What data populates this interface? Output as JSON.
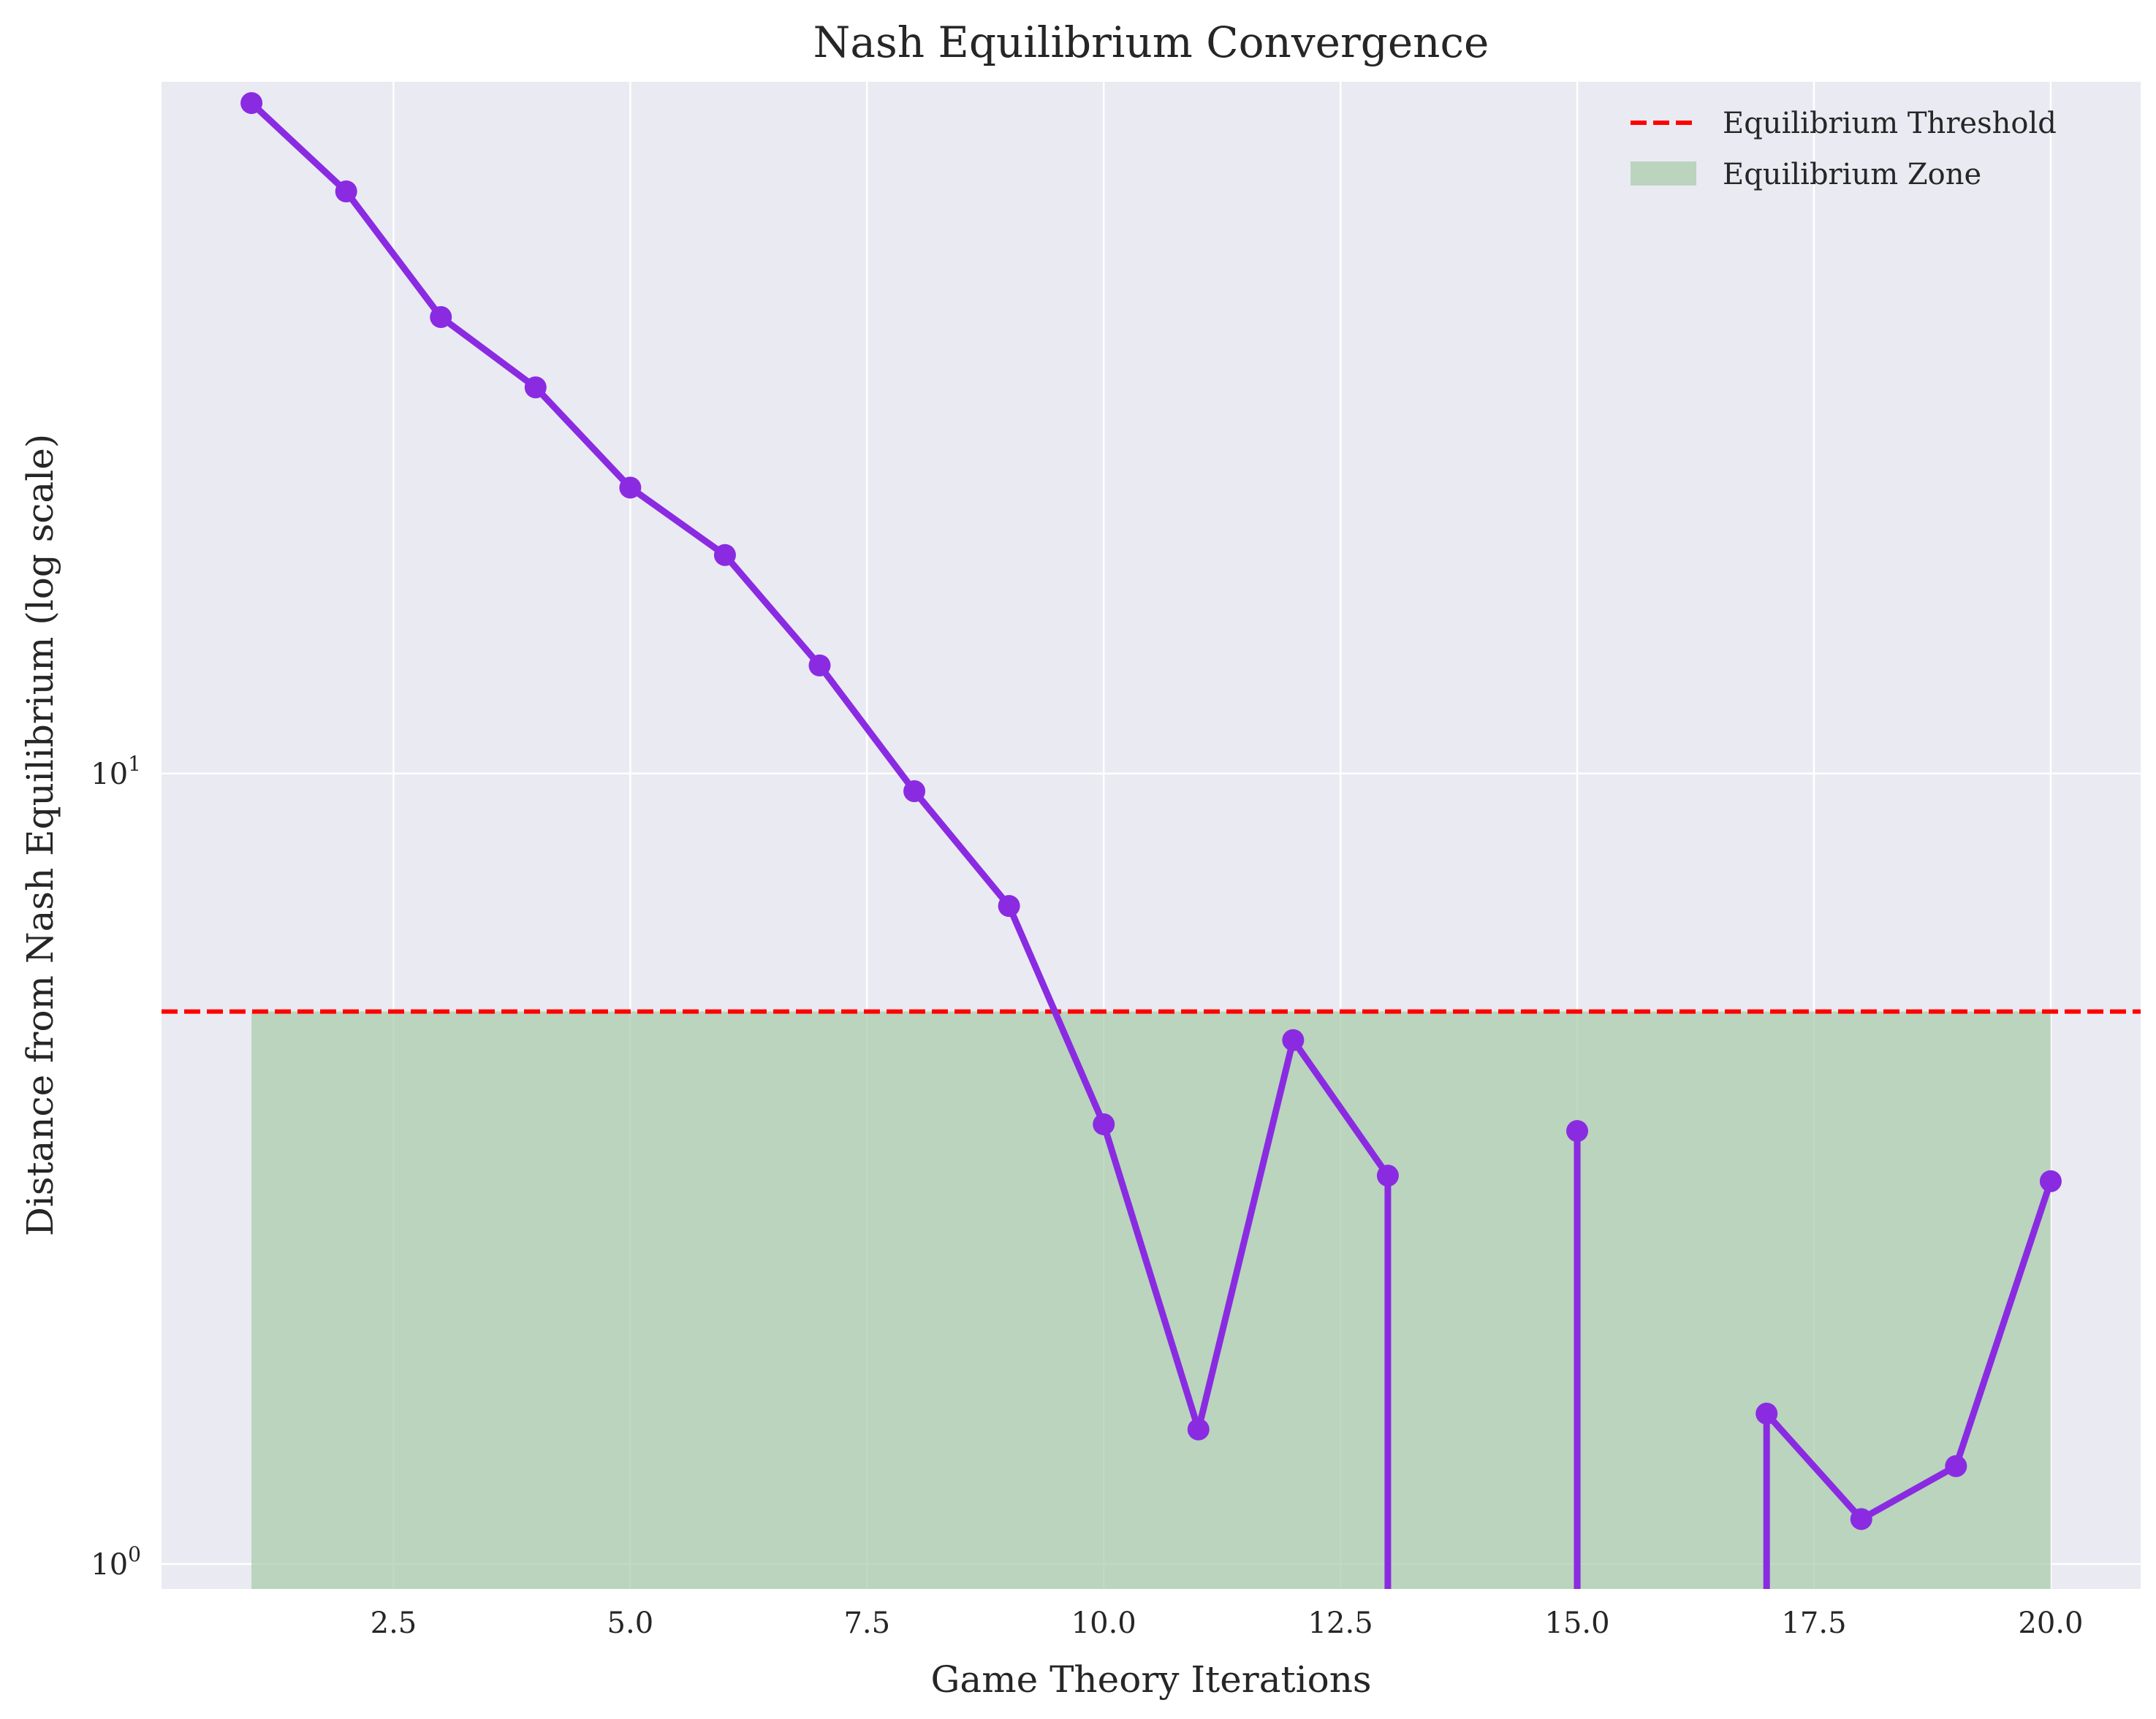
{
  "chart_data": {
    "type": "line",
    "title": "Nash Equilibrium Convergence",
    "xlabel": "Game Theory Iterations",
    "ylabel": "Distance from Nash Equilibrium (log scale)",
    "y_scale": "log",
    "xlim": [
      0.05,
      20.95
    ],
    "ylim": [
      0.93,
      75
    ],
    "x_ticks": [
      2.5,
      5.0,
      7.5,
      10.0,
      12.5,
      15.0,
      17.5,
      20.0
    ],
    "x_tick_labels": [
      "2.5",
      "5.0",
      "7.5",
      "10.0",
      "12.5",
      "15.0",
      "17.5",
      "20.0"
    ],
    "y_ticks": [
      {
        "value": 1,
        "base": "10",
        "exp": "0"
      },
      {
        "value": 10,
        "base": "10",
        "exp": "1"
      }
    ],
    "grid": true,
    "legend_position": "top-right",
    "colors": {
      "background": "#eaeaf2",
      "line": "#8a2be2",
      "threshold": "#ff0000",
      "zone": "#a8cca8",
      "grid": "#ffffff"
    },
    "series": [
      {
        "x": [
          1,
          2,
          3,
          4,
          5,
          6,
          7,
          8,
          9,
          10,
          11,
          12,
          13,
          14,
          15,
          16,
          17,
          18,
          19,
          20
        ],
        "values": [
          70.5,
          54.5,
          37.8,
          30.8,
          23.0,
          18.9,
          13.7,
          9.5,
          6.8,
          3.6,
          1.48,
          4.6,
          3.1,
          null,
          3.53,
          null,
          1.55,
          1.14,
          1.33,
          3.05
        ]
      }
    ],
    "threshold": {
      "name": "Equilibrium Threshold",
      "value": 5.0
    },
    "zone": {
      "name": "Equilibrium Zone",
      "x_range": [
        1,
        20
      ],
      "y_top": 5.0
    }
  }
}
